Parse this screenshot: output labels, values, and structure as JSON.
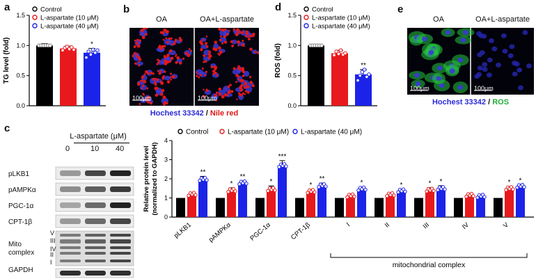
{
  "panels": {
    "a": "a",
    "b": "b",
    "c": "c",
    "d": "d",
    "e": "e"
  },
  "colors": {
    "control": "#000000",
    "low": "#e8191c",
    "high": "#1c23e8",
    "nuclei": "#3a3ad8",
    "lipid": "#e01818",
    "ros": "#27c93f"
  },
  "micro_b": {
    "left_label": "OA",
    "right_label": "OA+L-aspartate",
    "scale": "100μm",
    "caption_part1": "Hochest 33342",
    "caption_sep": " / ",
    "caption_part2": "Nile red"
  },
  "micro_e": {
    "left_label": "OA",
    "right_label": "OA+L-aspartate",
    "scale": "100μm",
    "caption_part1": "Hochest 33342",
    "caption_sep": " / ",
    "caption_part2": "ROS"
  },
  "blot": {
    "header": "L-aspartate (μM)",
    "doses": [
      "0",
      "10",
      "40"
    ],
    "rows": [
      "pLKB1",
      "pAMPKα",
      "PGC-1α",
      "CPT-1β",
      "Mito complex",
      "GAPDH"
    ],
    "complex_marks": [
      "V",
      "III",
      "IV",
      "II",
      "I"
    ]
  },
  "chart_data": [
    {
      "id": "a",
      "type": "bar",
      "ylabel": "TG level (fold)",
      "ylim": [
        0,
        1.5
      ],
      "yticks": [
        "0.0",
        "0.5",
        "1.0",
        "1.5"
      ],
      "legend": [
        "Control",
        "L-aspartate (10 μM)",
        "L-aspartate (40 μM)"
      ],
      "values": [
        1.0,
        0.95,
        0.88
      ],
      "errors": [
        0.03,
        0.04,
        0.07
      ],
      "sig": [
        "",
        "",
        "*"
      ],
      "points": [
        [
          1,
          1,
          1,
          1,
          1,
          1
        ],
        [
          0.92,
          0.96,
          0.98,
          0.94,
          0.97,
          0.93
        ],
        [
          0.8,
          0.9,
          0.85,
          0.93,
          0.88,
          0.92
        ]
      ]
    },
    {
      "id": "d",
      "type": "bar",
      "ylabel": "ROS (fold)",
      "ylim": [
        0,
        1.5
      ],
      "yticks": [
        "0.0",
        "0.5",
        "1.0",
        "1.5"
      ],
      "legend": [
        "Control",
        "L-aspartate (10 μM)",
        "L-aspartate (40 μM)"
      ],
      "values": [
        1.0,
        0.87,
        0.52
      ],
      "errors": [
        0.02,
        0.05,
        0.08
      ],
      "sig": [
        "",
        "",
        "**"
      ],
      "points": [
        [
          1,
          1,
          1,
          1,
          1,
          1
        ],
        [
          0.84,
          0.9,
          0.86,
          0.92,
          0.85,
          0.87
        ],
        [
          0.42,
          0.5,
          0.56,
          0.6,
          0.48,
          0.52
        ]
      ]
    },
    {
      "id": "c",
      "type": "bar",
      "ylabel": "Relative protein level",
      "ylabel2": "(normalized to GAPDH)",
      "ylim": [
        0,
        4
      ],
      "yticks": [
        "0",
        "1",
        "2",
        "3",
        "4"
      ],
      "legend": [
        "Control",
        "L-aspartate (10 μM)",
        "L-aspartate (40 μM)"
      ],
      "categories": [
        "pLKB1",
        "pAMPKα",
        "PGC-1α",
        "CPT-1β",
        "I",
        "II",
        "III",
        "IV",
        "V"
      ],
      "group_label": "mitochondrial complex",
      "series": [
        {
          "values": [
            1,
            1,
            1,
            1,
            1,
            1,
            1,
            1,
            1
          ],
          "errors": [
            0,
            0,
            0,
            0,
            0,
            0,
            0,
            0,
            0
          ],
          "sig": [
            "",
            "",
            "",
            "",
            "",
            "",
            "",
            "",
            ""
          ]
        },
        {
          "values": [
            1.2,
            1.4,
            1.45,
            1.35,
            1.12,
            1.18,
            1.42,
            1.15,
            1.5
          ],
          "errors": [
            0.07,
            0.13,
            0.18,
            0.1,
            0.1,
            0.07,
            0.12,
            0.06,
            0.1
          ],
          "sig": [
            "",
            "*",
            "*",
            "*",
            "",
            "",
            "*",
            "",
            "*"
          ]
        },
        {
          "values": [
            1.98,
            1.8,
            2.7,
            1.65,
            1.48,
            1.38,
            1.5,
            1.1,
            1.62
          ],
          "errors": [
            0.15,
            0.1,
            0.25,
            0.13,
            0.1,
            0.08,
            0.14,
            0.05,
            0.08
          ],
          "sig": [
            "**",
            "**",
            "***",
            "**",
            "*",
            "*",
            "*",
            "",
            "*"
          ]
        }
      ]
    }
  ]
}
